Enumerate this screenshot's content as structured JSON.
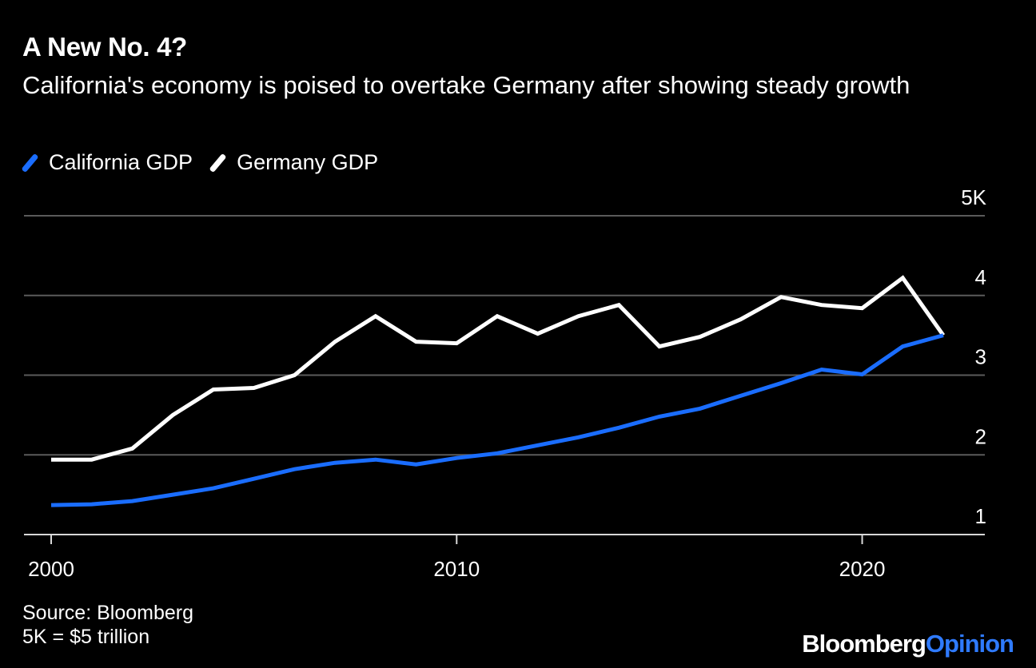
{
  "header": {
    "title": "A New No. 4?",
    "subtitle": "California's economy is poised to overtake Germany after showing steady growth"
  },
  "legend": {
    "items": [
      {
        "label": "California GDP",
        "color": "#1a6dff"
      },
      {
        "label": "Germany GDP",
        "color": "#ffffff"
      }
    ]
  },
  "footer": {
    "source": "Source: Bloomberg",
    "note": "5K = $5 trillion",
    "brand_part1": "Bloomberg",
    "brand_part2": "Opinion"
  },
  "chart_data": {
    "type": "line",
    "x": [
      2000,
      2001,
      2002,
      2003,
      2004,
      2005,
      2006,
      2007,
      2008,
      2009,
      2010,
      2011,
      2012,
      2013,
      2014,
      2015,
      2016,
      2017,
      2018,
      2019,
      2020,
      2021,
      2022
    ],
    "series": [
      {
        "name": "California GDP",
        "color": "#1a6dff",
        "values": [
          1.37,
          1.38,
          1.42,
          1.5,
          1.58,
          1.7,
          1.82,
          1.9,
          1.94,
          1.88,
          1.96,
          2.02,
          2.12,
          2.22,
          2.34,
          2.48,
          2.58,
          2.74,
          2.9,
          3.07,
          3.01,
          3.36,
          3.5
        ]
      },
      {
        "name": "Germany GDP",
        "color": "#ffffff",
        "values": [
          1.94,
          1.94,
          2.08,
          2.5,
          2.82,
          2.84,
          3.0,
          3.42,
          3.74,
          3.42,
          3.4,
          3.74,
          3.52,
          3.74,
          3.88,
          3.36,
          3.48,
          3.7,
          3.98,
          3.88,
          3.84,
          4.22,
          3.5
        ]
      }
    ],
    "y_ticks": [
      {
        "value": 1,
        "label": "1"
      },
      {
        "value": 2,
        "label": "2"
      },
      {
        "value": 3,
        "label": "3"
      },
      {
        "value": 4,
        "label": "4"
      },
      {
        "value": 5,
        "label": "5K"
      }
    ],
    "x_ticks": [
      {
        "value": 2000,
        "label": "2000"
      },
      {
        "value": 2010,
        "label": "2010"
      },
      {
        "value": 2020,
        "label": "2020"
      }
    ],
    "ylim": [
      1,
      5
    ],
    "xlim": [
      2000,
      2022
    ],
    "grid": true,
    "y_axis_side": "right",
    "legend_position": "top-left"
  }
}
